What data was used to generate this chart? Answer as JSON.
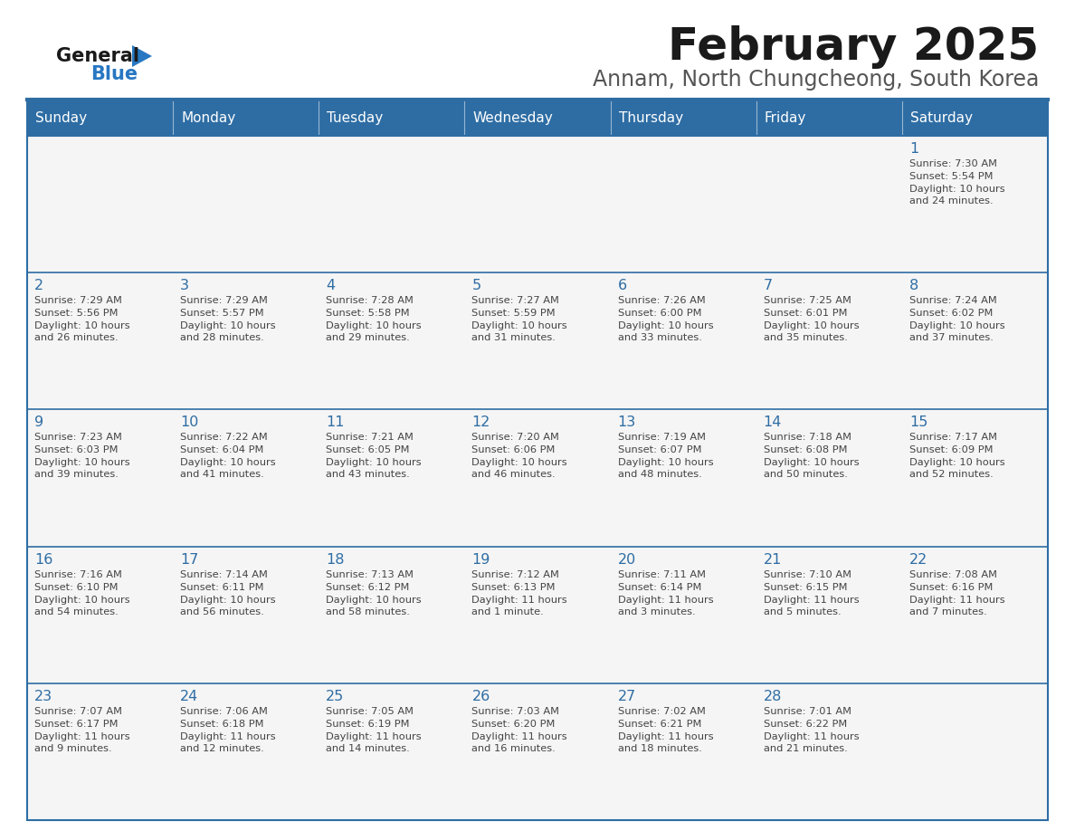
{
  "title": "February 2025",
  "subtitle": "Annam, North Chungcheong, South Korea",
  "days_of_week": [
    "Sunday",
    "Monday",
    "Tuesday",
    "Wednesday",
    "Thursday",
    "Friday",
    "Saturday"
  ],
  "header_bg": "#2E6DA4",
  "header_text": "#FFFFFF",
  "cell_bg": "#F5F5F5",
  "border_color": "#2E6DA4",
  "day_num_color": "#2E6DA4",
  "text_color": "#444444",
  "title_color": "#1A1A1A",
  "subtitle_color": "#555555",
  "logo_general_color": "#1A1A1A",
  "logo_blue_color": "#2777C2",
  "separator_color": "#2E6DA4",
  "calendar_data": [
    [
      null,
      null,
      null,
      null,
      null,
      null,
      {
        "day": "1",
        "sunrise": "7:30 AM",
        "sunset": "5:54 PM",
        "daylight": "10 hours\nand 24 minutes."
      }
    ],
    [
      {
        "day": "2",
        "sunrise": "7:29 AM",
        "sunset": "5:56 PM",
        "daylight": "10 hours\nand 26 minutes."
      },
      {
        "day": "3",
        "sunrise": "7:29 AM",
        "sunset": "5:57 PM",
        "daylight": "10 hours\nand 28 minutes."
      },
      {
        "day": "4",
        "sunrise": "7:28 AM",
        "sunset": "5:58 PM",
        "daylight": "10 hours\nand 29 minutes."
      },
      {
        "day": "5",
        "sunrise": "7:27 AM",
        "sunset": "5:59 PM",
        "daylight": "10 hours\nand 31 minutes."
      },
      {
        "day": "6",
        "sunrise": "7:26 AM",
        "sunset": "6:00 PM",
        "daylight": "10 hours\nand 33 minutes."
      },
      {
        "day": "7",
        "sunrise": "7:25 AM",
        "sunset": "6:01 PM",
        "daylight": "10 hours\nand 35 minutes."
      },
      {
        "day": "8",
        "sunrise": "7:24 AM",
        "sunset": "6:02 PM",
        "daylight": "10 hours\nand 37 minutes."
      }
    ],
    [
      {
        "day": "9",
        "sunrise": "7:23 AM",
        "sunset": "6:03 PM",
        "daylight": "10 hours\nand 39 minutes."
      },
      {
        "day": "10",
        "sunrise": "7:22 AM",
        "sunset": "6:04 PM",
        "daylight": "10 hours\nand 41 minutes."
      },
      {
        "day": "11",
        "sunrise": "7:21 AM",
        "sunset": "6:05 PM",
        "daylight": "10 hours\nand 43 minutes."
      },
      {
        "day": "12",
        "sunrise": "7:20 AM",
        "sunset": "6:06 PM",
        "daylight": "10 hours\nand 46 minutes."
      },
      {
        "day": "13",
        "sunrise": "7:19 AM",
        "sunset": "6:07 PM",
        "daylight": "10 hours\nand 48 minutes."
      },
      {
        "day": "14",
        "sunrise": "7:18 AM",
        "sunset": "6:08 PM",
        "daylight": "10 hours\nand 50 minutes."
      },
      {
        "day": "15",
        "sunrise": "7:17 AM",
        "sunset": "6:09 PM",
        "daylight": "10 hours\nand 52 minutes."
      }
    ],
    [
      {
        "day": "16",
        "sunrise": "7:16 AM",
        "sunset": "6:10 PM",
        "daylight": "10 hours\nand 54 minutes."
      },
      {
        "day": "17",
        "sunrise": "7:14 AM",
        "sunset": "6:11 PM",
        "daylight": "10 hours\nand 56 minutes."
      },
      {
        "day": "18",
        "sunrise": "7:13 AM",
        "sunset": "6:12 PM",
        "daylight": "10 hours\nand 58 minutes."
      },
      {
        "day": "19",
        "sunrise": "7:12 AM",
        "sunset": "6:13 PM",
        "daylight": "11 hours\nand 1 minute."
      },
      {
        "day": "20",
        "sunrise": "7:11 AM",
        "sunset": "6:14 PM",
        "daylight": "11 hours\nand 3 minutes."
      },
      {
        "day": "21",
        "sunrise": "7:10 AM",
        "sunset": "6:15 PM",
        "daylight": "11 hours\nand 5 minutes."
      },
      {
        "day": "22",
        "sunrise": "7:08 AM",
        "sunset": "6:16 PM",
        "daylight": "11 hours\nand 7 minutes."
      }
    ],
    [
      {
        "day": "23",
        "sunrise": "7:07 AM",
        "sunset": "6:17 PM",
        "daylight": "11 hours\nand 9 minutes."
      },
      {
        "day": "24",
        "sunrise": "7:06 AM",
        "sunset": "6:18 PM",
        "daylight": "11 hours\nand 12 minutes."
      },
      {
        "day": "25",
        "sunrise": "7:05 AM",
        "sunset": "6:19 PM",
        "daylight": "11 hours\nand 14 minutes."
      },
      {
        "day": "26",
        "sunrise": "7:03 AM",
        "sunset": "6:20 PM",
        "daylight": "11 hours\nand 16 minutes."
      },
      {
        "day": "27",
        "sunrise": "7:02 AM",
        "sunset": "6:21 PM",
        "daylight": "11 hours\nand 18 minutes."
      },
      {
        "day": "28",
        "sunrise": "7:01 AM",
        "sunset": "6:22 PM",
        "daylight": "11 hours\nand 21 minutes."
      },
      null
    ]
  ]
}
